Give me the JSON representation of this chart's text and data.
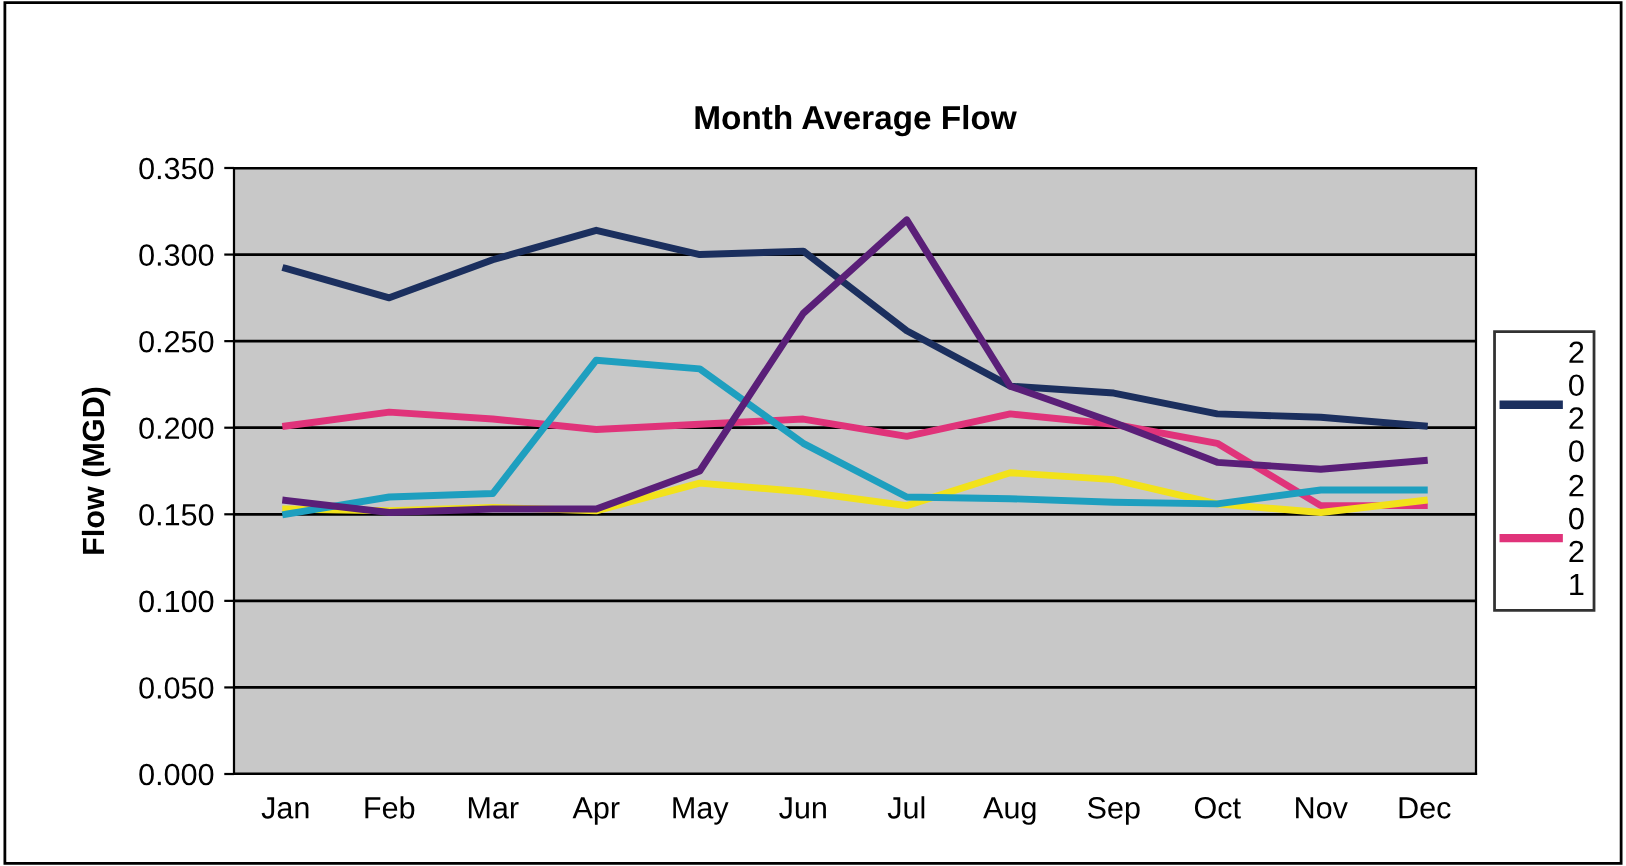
{
  "chart_data": {
    "type": "line",
    "title": "Month Average Flow",
    "ylabel": "Flow (MGD)",
    "categories": [
      "Jan",
      "Feb",
      "Mar",
      "Apr",
      "May",
      "Jun",
      "Jul",
      "Aug",
      "Sep",
      "Oct",
      "Nov",
      "Dec"
    ],
    "series": [
      {
        "name": "2020",
        "color": "#1b2f5e",
        "values": [
          0.292,
          0.275,
          0.297,
          0.314,
          0.3,
          0.302,
          0.256,
          0.224,
          0.22,
          0.208,
          0.206,
          0.201
        ]
      },
      {
        "name": "2021",
        "color": "#e0337a",
        "values": [
          0.201,
          0.209,
          0.205,
          0.199,
          0.202,
          0.205,
          0.195,
          0.208,
          0.202,
          0.191,
          0.155,
          0.155
        ]
      },
      {
        "color": "#f2e21a",
        "values": [
          0.153,
          0.152,
          0.154,
          0.152,
          0.168,
          0.163,
          0.155,
          0.174,
          0.17,
          0.156,
          0.151,
          0.158
        ]
      },
      {
        "color": "#1e9fbf",
        "values": [
          0.15,
          0.16,
          0.162,
          0.239,
          0.234,
          0.191,
          0.16,
          0.159,
          0.157,
          0.156,
          0.164,
          0.164
        ]
      },
      {
        "color": "#5a1f78",
        "values": [
          0.158,
          0.151,
          0.153,
          0.153,
          0.175,
          0.266,
          0.32,
          0.224,
          0.203,
          0.18,
          0.176,
          0.181
        ]
      }
    ],
    "ylim": [
      0,
      0.35
    ],
    "yticks": [
      {
        "value": 0,
        "label": "0.000"
      },
      {
        "value": 0.05,
        "label": "0.050"
      },
      {
        "value": 0.1,
        "label": "0.100"
      },
      {
        "value": 0.15,
        "label": "0.150"
      },
      {
        "value": 0.2,
        "label": "0.200"
      },
      {
        "value": 0.25,
        "label": "0.250"
      },
      {
        "value": 0.3,
        "label": "0.300"
      },
      {
        "value": 0.35,
        "label": "0.350"
      }
    ],
    "grid": "y",
    "legend": "right",
    "marker": "none",
    "line_style": "solid"
  }
}
